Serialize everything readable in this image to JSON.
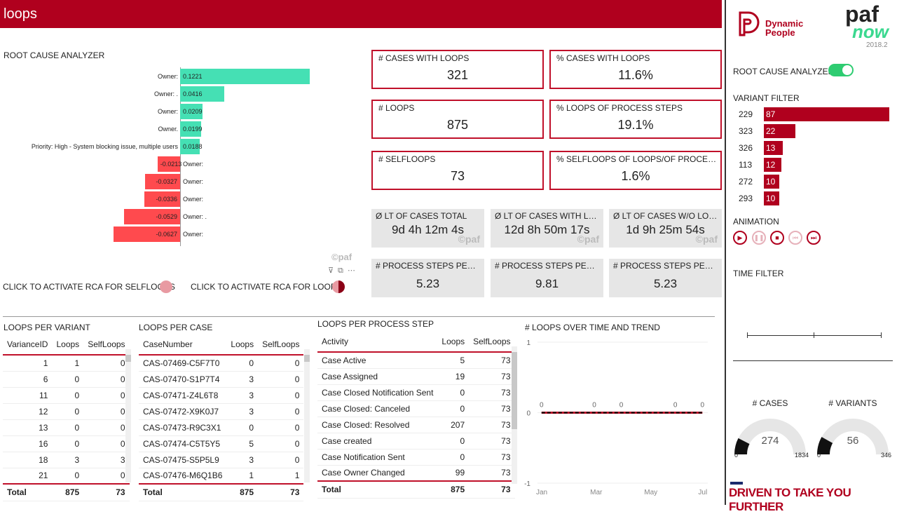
{
  "header": {
    "title": "loops"
  },
  "rca": {
    "title": "ROOT CAUSE ANALYZER",
    "watermark": "©paf",
    "bars": [
      {
        "label": "Owner:",
        "value": 0.1221,
        "value_label": "0.1221"
      },
      {
        "label": "Owner: .",
        "value": 0.0416,
        "value_label": "0.0416"
      },
      {
        "label": "Owner:",
        "value": 0.0209,
        "value_label": "0.0209"
      },
      {
        "label": "Owner.",
        "value": 0.0199,
        "value_label": "0.0199"
      },
      {
        "label": "Priority: High - System blocking issue, multiple users",
        "value": 0.0188,
        "value_label": "0.0188"
      },
      {
        "label": "Owner:",
        "value": -0.0213,
        "value_label": "-0.0213"
      },
      {
        "label": "Owner:",
        "value": -0.0327,
        "value_label": "-0.0327"
      },
      {
        "label": "Owner:",
        "value": -0.0336,
        "value_label": "-0.0336"
      },
      {
        "label": "Owner: .",
        "value": -0.0529,
        "value_label": "-0.0529"
      },
      {
        "label": "Owner:",
        "value": -0.0627,
        "value_label": "-0.0627"
      }
    ],
    "positive_color": "#45e0b4",
    "negative_color": "#ff4a4e",
    "selfloops_toggle": "CLICK TO ACTIVATE RCA FOR SELFLOOPS",
    "loops_toggle": "CLICK TO ACTIVATE RCA FOR LOOPS"
  },
  "kpis": [
    {
      "label": "# CASES WITH LOOPS",
      "value": "321"
    },
    {
      "label": "% CASES WITH LOOPS",
      "value": "11.6%"
    },
    {
      "label": "# LOOPS",
      "value": "875"
    },
    {
      "label": "% LOOPS OF PROCESS STEPS",
      "value": "19.1%"
    },
    {
      "label": "# SELFLOOPS",
      "value": "73"
    },
    {
      "label": "% SELFLOOPS OF LOOPS/OF PROCESS STE...",
      "value": "1.6%"
    }
  ],
  "grey_kpis": [
    {
      "label": "Ø LT OF CASES TOTAL",
      "value": "9d 4h 12m 4s"
    },
    {
      "label": "Ø LT OF CASES WITH LOO...",
      "value": "12d 8h 50m 17s"
    },
    {
      "label": "Ø LT OF CASES W/O LOOPS",
      "value": "1d 9h 25m 54s"
    },
    {
      "label": "# PROCESS STEPS PER CA...",
      "value": "5.23"
    },
    {
      "label": "# PROCESS STEPS PER CA...",
      "value": "9.81"
    },
    {
      "label": "# PROCESS STEPS PER CA...",
      "value": "5.23"
    }
  ],
  "watermark": "©paf",
  "variant_table": {
    "title": "LOOPS PER VARIANT",
    "columns": [
      "VarianceID",
      "Loops",
      "SelfLoops"
    ],
    "rows": [
      [
        "1",
        "1",
        "0"
      ],
      [
        "6",
        "0",
        "0"
      ],
      [
        "11",
        "0",
        "0"
      ],
      [
        "12",
        "0",
        "0"
      ],
      [
        "13",
        "0",
        "0"
      ],
      [
        "16",
        "0",
        "0"
      ],
      [
        "18",
        "3",
        "3"
      ],
      [
        "21",
        "0",
        "0"
      ]
    ],
    "total": [
      "Total",
      "875",
      "73"
    ]
  },
  "case_table": {
    "title": "LOOPS PER CASE",
    "columns": [
      "CaseNumber",
      "Loops",
      "SelfLoops"
    ],
    "rows": [
      [
        "CAS-07469-C5F7T0",
        "0",
        "0"
      ],
      [
        "CAS-07470-S1P7T4",
        "3",
        "0"
      ],
      [
        "CAS-07471-Z4L6T8",
        "3",
        "0"
      ],
      [
        "CAS-07472-X9K0J7",
        "3",
        "0"
      ],
      [
        "CAS-07473-R9C3X1",
        "0",
        "0"
      ],
      [
        "CAS-07474-C5T5Y5",
        "5",
        "0"
      ],
      [
        "CAS-07475-S5P5L9",
        "3",
        "0"
      ],
      [
        "CAS-07476-M6Q1B6",
        "1",
        "1"
      ]
    ],
    "total": [
      "Total",
      "875",
      "73"
    ]
  },
  "step_table": {
    "title": "LOOPS PER PROCESS STEP",
    "columns": [
      "Activity",
      "Loops",
      "SelfLoops"
    ],
    "rows": [
      [
        "Case Active",
        "5",
        "73"
      ],
      [
        "Case Assigned",
        "19",
        "73"
      ],
      [
        "Case Closed Notification Sent",
        "0",
        "73"
      ],
      [
        "Case Closed: Canceled",
        "0",
        "73"
      ],
      [
        "Case Closed: Resolved",
        "207",
        "73"
      ],
      [
        "Case created",
        "0",
        "73"
      ],
      [
        "Case Notification Sent",
        "0",
        "73"
      ],
      [
        "Case Owner Changed",
        "99",
        "73"
      ]
    ],
    "total": [
      "Total",
      "875",
      "73"
    ]
  },
  "chart_data": {
    "type": "line",
    "title": "# LOOPS OVER TIME AND TREND",
    "x_ticks": [
      "Jan",
      "Mar",
      "May",
      "Jul"
    ],
    "y_ticks": [
      "1",
      "0",
      "-1"
    ],
    "ylim": [
      -1,
      1
    ],
    "x": [
      0.15,
      2.1,
      3.1,
      5.1,
      6.1
    ],
    "values": [
      0,
      0,
      0,
      0,
      0
    ],
    "data_labels": [
      "0",
      "0",
      "0",
      "0",
      "0"
    ],
    "series_color": "#c0102a",
    "trend_color": "#000000",
    "grid": true
  },
  "sidebar": {
    "logo_text": "Dynamic People",
    "paf": "paf",
    "now": "now",
    "version": "2018.2",
    "rca_label": "ROOT CAUSE ANALYZER",
    "rca_on": true,
    "variant_title": "VARIANT FILTER",
    "variants": [
      {
        "id": "229",
        "count": 87
      },
      {
        "id": "323",
        "count": 22
      },
      {
        "id": "326",
        "count": 13
      },
      {
        "id": "113",
        "count": 12
      },
      {
        "id": "272",
        "count": 10
      },
      {
        "id": "293",
        "count": 10
      }
    ],
    "bar_color": "#b0001e",
    "animation_title": "ANIMATION",
    "time_filter_title": "TIME FILTER",
    "gauges": [
      {
        "title": "# CASES",
        "value": 274,
        "min": 0,
        "max": 1834
      },
      {
        "title": "# VARIANTS",
        "value": 56,
        "min": 0,
        "max": 346
      }
    ],
    "slogan": "DRIVEN TO TAKE YOU FURTHER"
  }
}
